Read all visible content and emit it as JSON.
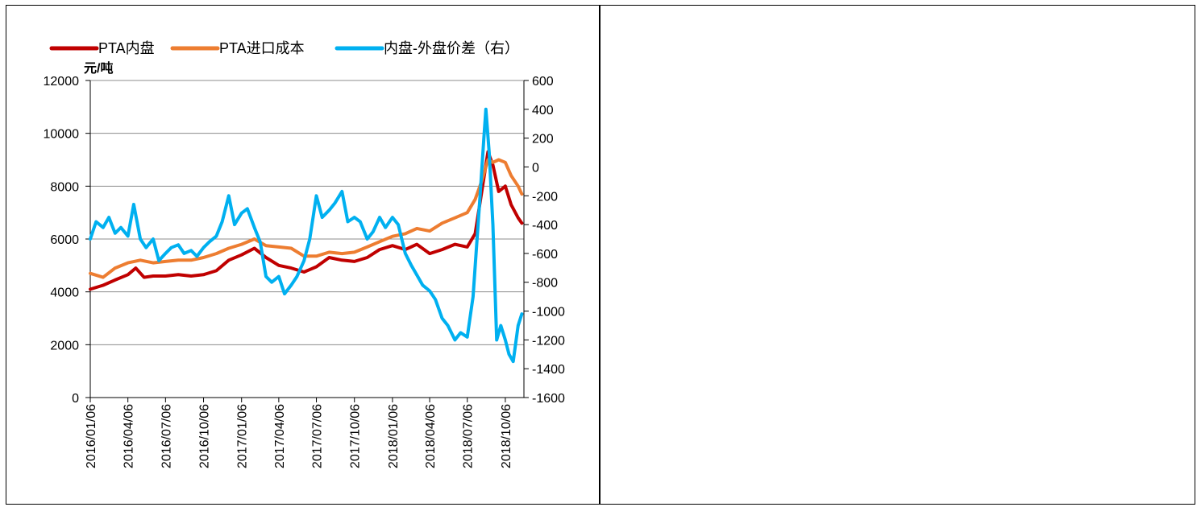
{
  "chart_data": {
    "type": "line",
    "unit_label": "元/吨",
    "x": [
      "2016/01/06",
      "2016/04/06",
      "2016/07/06",
      "2016/10/06",
      "2017/01/06",
      "2017/04/06",
      "2017/07/06",
      "2017/10/06",
      "2018/01/06",
      "2018/04/06",
      "2018/07/06",
      "2018/10/06"
    ],
    "x_tick_labels": [
      "2016/01/06",
      "2016/04/06",
      "2016/07/06",
      "2016/10/06",
      "2017/01/06",
      "2017/04/06",
      "2017/07/06",
      "2017/10/06",
      "2018/01/06",
      "2018/04/06",
      "2018/07/06",
      "2018/10/06"
    ],
    "y_left": {
      "range": [
        0,
        12000
      ],
      "ticks": [
        0,
        2000,
        4000,
        6000,
        8000,
        10000,
        12000
      ]
    },
    "y_right": {
      "range": [
        -1600,
        600
      ],
      "ticks": [
        -1600,
        -1400,
        -1200,
        -1000,
        -800,
        -600,
        -400,
        -200,
        0,
        200,
        400,
        600
      ]
    },
    "grid": true,
    "legend_position": "top",
    "series": [
      {
        "name": "PTA内盘",
        "axis": "left",
        "color": "#c00000",
        "points": [
          [
            "2016/01/06",
            4100
          ],
          [
            "2016/02/06",
            4250
          ],
          [
            "2016/03/06",
            4450
          ],
          [
            "2016/04/06",
            4650
          ],
          [
            "2016/04/25",
            4900
          ],
          [
            "2016/05/15",
            4550
          ],
          [
            "2016/06/06",
            4600
          ],
          [
            "2016/07/06",
            4600
          ],
          [
            "2016/08/06",
            4650
          ],
          [
            "2016/09/06",
            4600
          ],
          [
            "2016/10/06",
            4650
          ],
          [
            "2016/11/06",
            4800
          ],
          [
            "2016/12/06",
            5200
          ],
          [
            "2017/01/06",
            5400
          ],
          [
            "2017/02/06",
            5650
          ],
          [
            "2017/03/06",
            5300
          ],
          [
            "2017/04/06",
            5000
          ],
          [
            "2017/05/06",
            4900
          ],
          [
            "2017/06/06",
            4750
          ],
          [
            "2017/07/06",
            4950
          ],
          [
            "2017/08/06",
            5300
          ],
          [
            "2017/09/06",
            5200
          ],
          [
            "2017/10/06",
            5150
          ],
          [
            "2017/11/06",
            5300
          ],
          [
            "2017/12/06",
            5600
          ],
          [
            "2018/01/06",
            5750
          ],
          [
            "2018/02/06",
            5600
          ],
          [
            "2018/03/06",
            5800
          ],
          [
            "2018/04/06",
            5450
          ],
          [
            "2018/05/06",
            5600
          ],
          [
            "2018/06/06",
            5800
          ],
          [
            "2018/07/06",
            5700
          ],
          [
            "2018/07/25",
            6200
          ],
          [
            "2018/08/10",
            7800
          ],
          [
            "2018/08/25",
            9300
          ],
          [
            "2018/09/06",
            8800
          ],
          [
            "2018/09/20",
            7800
          ],
          [
            "2018/10/06",
            8000
          ],
          [
            "2018/10/20",
            7300
          ],
          [
            "2018/11/06",
            6800
          ],
          [
            "2018/11/15",
            6600
          ]
        ]
      },
      {
        "name": "PTA进口成本",
        "axis": "left",
        "color": "#ed7d31",
        "points": [
          [
            "2016/01/06",
            4700
          ],
          [
            "2016/02/06",
            4550
          ],
          [
            "2016/03/06",
            4900
          ],
          [
            "2016/04/06",
            5100
          ],
          [
            "2016/05/06",
            5200
          ],
          [
            "2016/06/06",
            5100
          ],
          [
            "2016/07/06",
            5150
          ],
          [
            "2016/08/06",
            5200
          ],
          [
            "2016/09/06",
            5200
          ],
          [
            "2016/10/06",
            5300
          ],
          [
            "2016/11/06",
            5450
          ],
          [
            "2016/12/06",
            5650
          ],
          [
            "2017/01/06",
            5800
          ],
          [
            "2017/02/06",
            6000
          ],
          [
            "2017/03/06",
            5750
          ],
          [
            "2017/04/06",
            5700
          ],
          [
            "2017/05/06",
            5650
          ],
          [
            "2017/06/06",
            5350
          ],
          [
            "2017/07/06",
            5350
          ],
          [
            "2017/08/06",
            5500
          ],
          [
            "2017/09/06",
            5450
          ],
          [
            "2017/10/06",
            5500
          ],
          [
            "2017/11/06",
            5700
          ],
          [
            "2017/12/06",
            5900
          ],
          [
            "2018/01/06",
            6100
          ],
          [
            "2018/02/06",
            6200
          ],
          [
            "2018/03/06",
            6400
          ],
          [
            "2018/04/06",
            6300
          ],
          [
            "2018/05/06",
            6600
          ],
          [
            "2018/06/06",
            6800
          ],
          [
            "2018/07/06",
            7000
          ],
          [
            "2018/07/25",
            7500
          ],
          [
            "2018/08/10",
            8200
          ],
          [
            "2018/08/25",
            9000
          ],
          [
            "2018/09/06",
            8900
          ],
          [
            "2018/09/20",
            9000
          ],
          [
            "2018/10/06",
            8900
          ],
          [
            "2018/10/20",
            8400
          ],
          [
            "2018/11/06",
            8000
          ],
          [
            "2018/11/15",
            7700
          ]
        ]
      },
      {
        "name": "内盘-外盘价差（右）",
        "axis": "right",
        "color": "#00b0f0",
        "points": [
          [
            "2016/01/06",
            -500
          ],
          [
            "2016/01/20",
            -380
          ],
          [
            "2016/02/06",
            -420
          ],
          [
            "2016/02/20",
            -350
          ],
          [
            "2016/03/06",
            -460
          ],
          [
            "2016/03/20",
            -420
          ],
          [
            "2016/04/06",
            -480
          ],
          [
            "2016/04/20",
            -260
          ],
          [
            "2016/05/06",
            -500
          ],
          [
            "2016/05/20",
            -560
          ],
          [
            "2016/06/06",
            -500
          ],
          [
            "2016/06/20",
            -650
          ],
          [
            "2016/07/06",
            -600
          ],
          [
            "2016/07/20",
            -560
          ],
          [
            "2016/08/06",
            -540
          ],
          [
            "2016/08/20",
            -600
          ],
          [
            "2016/09/06",
            -580
          ],
          [
            "2016/09/20",
            -620
          ],
          [
            "2016/10/06",
            -560
          ],
          [
            "2016/10/20",
            -520
          ],
          [
            "2016/11/06",
            -480
          ],
          [
            "2016/11/20",
            -380
          ],
          [
            "2016/12/06",
            -200
          ],
          [
            "2016/12/20",
            -400
          ],
          [
            "2017/01/06",
            -320
          ],
          [
            "2017/01/20",
            -290
          ],
          [
            "2017/02/06",
            -420
          ],
          [
            "2017/02/20",
            -520
          ],
          [
            "2017/03/06",
            -760
          ],
          [
            "2017/03/20",
            -800
          ],
          [
            "2017/04/06",
            -760
          ],
          [
            "2017/04/20",
            -880
          ],
          [
            "2017/05/06",
            -820
          ],
          [
            "2017/05/20",
            -760
          ],
          [
            "2017/06/06",
            -650
          ],
          [
            "2017/06/20",
            -500
          ],
          [
            "2017/07/06",
            -200
          ],
          [
            "2017/07/20",
            -350
          ],
          [
            "2017/08/06",
            -300
          ],
          [
            "2017/08/20",
            -250
          ],
          [
            "2017/09/06",
            -170
          ],
          [
            "2017/09/20",
            -380
          ],
          [
            "2017/10/06",
            -350
          ],
          [
            "2017/10/20",
            -380
          ],
          [
            "2017/11/06",
            -500
          ],
          [
            "2017/11/20",
            -450
          ],
          [
            "2017/12/06",
            -350
          ],
          [
            "2017/12/20",
            -420
          ],
          [
            "2018/01/06",
            -350
          ],
          [
            "2018/01/20",
            -400
          ],
          [
            "2018/02/06",
            -600
          ],
          [
            "2018/02/20",
            -680
          ],
          [
            "2018/03/06",
            -750
          ],
          [
            "2018/03/20",
            -820
          ],
          [
            "2018/04/06",
            -860
          ],
          [
            "2018/04/20",
            -920
          ],
          [
            "2018/05/06",
            -1050
          ],
          [
            "2018/05/20",
            -1100
          ],
          [
            "2018/06/06",
            -1200
          ],
          [
            "2018/06/20",
            -1150
          ],
          [
            "2018/07/06",
            -1180
          ],
          [
            "2018/07/20",
            -900
          ],
          [
            "2018/08/06",
            -200
          ],
          [
            "2018/08/15",
            200
          ],
          [
            "2018/08/20",
            400
          ],
          [
            "2018/08/28",
            100
          ],
          [
            "2018/09/06",
            -400
          ],
          [
            "2018/09/15",
            -1200
          ],
          [
            "2018/09/25",
            -1100
          ],
          [
            "2018/10/06",
            -1200
          ],
          [
            "2018/10/15",
            -1300
          ],
          [
            "2018/10/25",
            -1350
          ],
          [
            "2018/11/06",
            -1100
          ],
          [
            "2018/11/15",
            -1020
          ]
        ]
      }
    ]
  }
}
